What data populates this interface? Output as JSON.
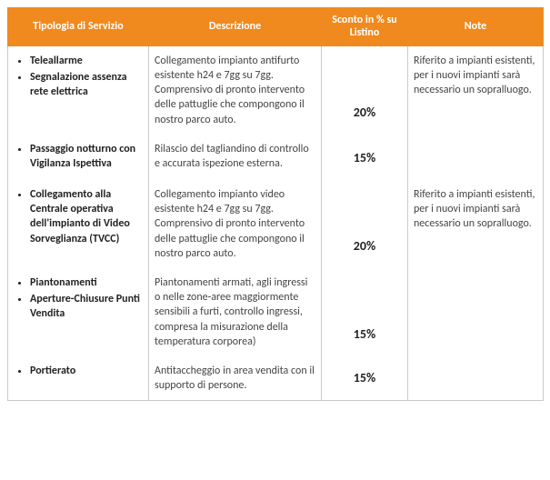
{
  "header": {
    "col1": "Tipologia di Servizio",
    "col2": "Descrizione",
    "col3": "Sconto in % su Listino",
    "col4": "Note",
    "bg_color": "#f08a1e",
    "text_color": "#ffffff"
  },
  "rows": [
    {
      "services": [
        "Teleallarme",
        "Segnalazione assenza rete elettrica"
      ],
      "desc": "Collegamento impianto antifurto esistente h24 e 7gg su 7gg. Comprensivo di pronto intervento delle pattuglie che compongono il nostro parco auto.",
      "discount": "20%",
      "note": "Riferito a impianti esistenti, per i nuovi impianti sarà necessario un sopralluogo."
    },
    {
      "services": [
        "Passaggio notturno con Vigilanza Ispettiva"
      ],
      "desc": "Rilascio del tagliandino di controllo e accurata ispezione esterna.",
      "discount": "15%",
      "note": ""
    },
    {
      "services": [
        "Collegamento alla Centrale operativa dell'impianto di Video Sorveglianza (TVCC)"
      ],
      "desc": "Collegamento impianto video esistente h24 e 7gg su 7gg. Comprensivo di pronto intervento delle pattuglie che compongono il nostro parco auto.",
      "discount": "20%",
      "note": "Riferito a impianti esistenti, per i nuovi impianti sarà necessario un sopralluogo."
    },
    {
      "services": [
        "Piantonamenti",
        "Aperture-Chiusure Punti Vendita"
      ],
      "desc": "Piantonamenti armati, agli ingressi o nelle zone-aree maggiormente sensibili a furti, controllo ingressi, compresa la misurazione della temperatura corporea)",
      "discount": "15%",
      "note": ""
    },
    {
      "services": [
        "Portierato"
      ],
      "desc": "Antitaccheggio in area vendita con il supporto di persone.",
      "discount": "15%",
      "note": ""
    }
  ]
}
